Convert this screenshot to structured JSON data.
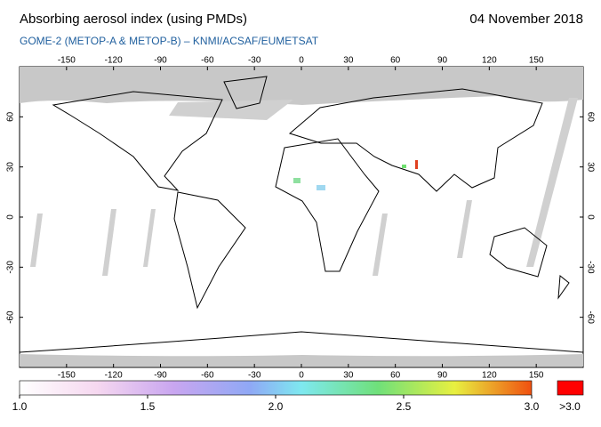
{
  "header": {
    "title": "Absorbing aerosol index (using PMDs)",
    "subtitle": "GOME-2 (METOP-A & METOP-B)  –  KNMI/ACSAF/EUMETSAT",
    "date": "04 November 2018"
  },
  "map": {
    "lon_range": [
      -180,
      180
    ],
    "lat_range": [
      -90,
      90
    ],
    "lon_ticks": [
      -150,
      -120,
      -90,
      -60,
      -30,
      0,
      30,
      60,
      90,
      120,
      150
    ],
    "lat_ticks": [
      60,
      30,
      0,
      -30,
      -60
    ]
  },
  "colorbar": {
    "range": [
      1,
      3
    ],
    "ticks": [
      {
        "value": 1,
        "label": "1.0"
      },
      {
        "value": 1.5,
        "label": "1.5"
      },
      {
        "value": 2,
        "label": "2.0"
      },
      {
        "value": 2.5,
        "label": "2.5"
      },
      {
        "value": 3,
        "label": "3.0"
      }
    ],
    "over_label": ">3.0"
  }
}
